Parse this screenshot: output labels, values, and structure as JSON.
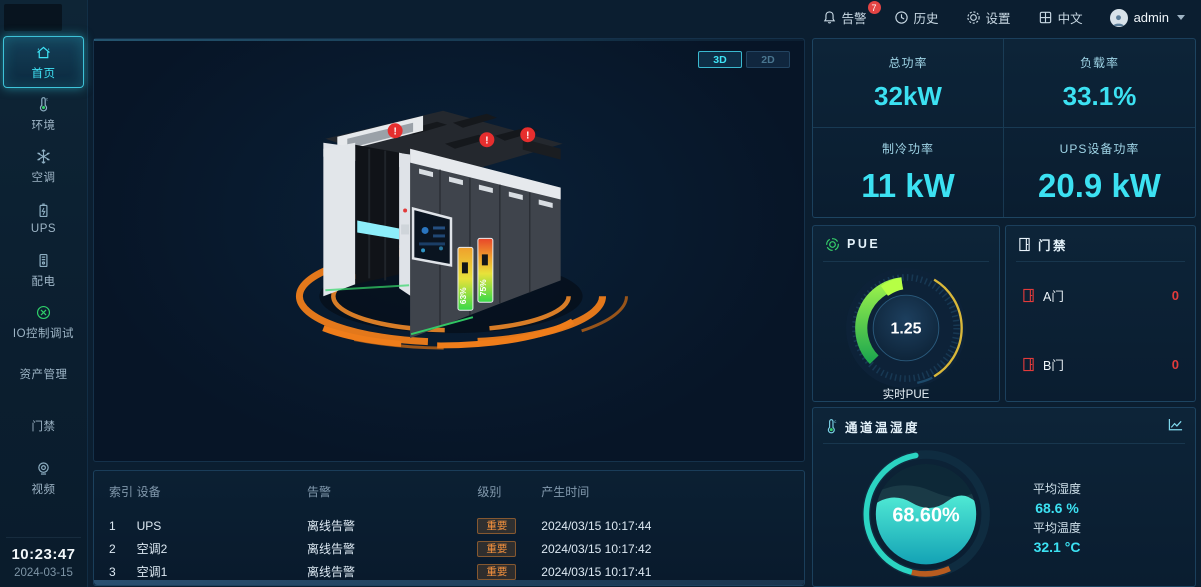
{
  "topbar": {
    "alarm": {
      "label": "告警",
      "badge": "7"
    },
    "history": {
      "label": "历史"
    },
    "settings": {
      "label": "设置"
    },
    "language": {
      "label": "中文"
    },
    "user": {
      "name": "admin"
    }
  },
  "sidebar": {
    "items": [
      {
        "key": "home",
        "label": "首页",
        "icon": "home",
        "active": true
      },
      {
        "key": "env",
        "label": "环境",
        "icon": "thermometer"
      },
      {
        "key": "ac",
        "label": "空调",
        "icon": "snowflake"
      },
      {
        "key": "ups",
        "label": "UPS",
        "icon": "battery"
      },
      {
        "key": "power",
        "label": "配电",
        "icon": "cabinet"
      },
      {
        "key": "io",
        "label": "IO控制调试",
        "icon": "io"
      },
      {
        "key": "asset",
        "label": "资产管理",
        "icon": null
      },
      {
        "key": "door",
        "label": "门禁",
        "icon": null
      },
      {
        "key": "video",
        "label": "视频",
        "icon": "camera"
      }
    ],
    "clock": {
      "time": "10:23:47",
      "date": "2024-03-15"
    }
  },
  "scene3d": {
    "toggle_3d": "3D",
    "toggle_2d": "2D",
    "alert_symbol": "!",
    "rack_bars": [
      {
        "value": "63%"
      },
      {
        "value": "75%"
      }
    ]
  },
  "stats": {
    "cells": [
      {
        "label": "总功率",
        "value": "32kW"
      },
      {
        "label": "负载率",
        "value": "33.1%"
      },
      {
        "label": "制冷功率",
        "value": "11 kW"
      },
      {
        "label": "UPS设备功率",
        "value": "20.9 kW"
      }
    ]
  },
  "pue": {
    "title": "PUE",
    "value": "1.25",
    "caption": "实时PUE"
  },
  "access": {
    "title": "门禁",
    "doors": [
      {
        "name": "A门",
        "value": "0"
      },
      {
        "name": "B门",
        "value": "0"
      }
    ]
  },
  "humidity_panel": {
    "title": "通道温湿度",
    "gauge_value": "68.60%",
    "metrics": [
      {
        "label": "平均湿度",
        "value": "68.6 %"
      },
      {
        "label": "平均温度",
        "value": "32.1 °C"
      }
    ]
  },
  "alarm_table": {
    "headers": [
      "索引",
      "设备",
      "告警",
      "级别",
      "产生时间"
    ],
    "rows": [
      {
        "index": "1",
        "device": "UPS",
        "alarm": "离线告警",
        "level": "重要",
        "time": "2024/03/15 10:17:44"
      },
      {
        "index": "2",
        "device": "空调2",
        "alarm": "离线告警",
        "level": "重要",
        "time": "2024/03/15 10:17:42"
      },
      {
        "index": "3",
        "device": "空调1",
        "alarm": "离线告警",
        "level": "重要",
        "time": "2024/03/15 10:17:41"
      }
    ]
  },
  "colors": {
    "accent_cyan": "#3ce1f2",
    "alert_red": "#e23b3b",
    "badge_orange": "#f5923e",
    "ring_orange": "#ef7d1a",
    "gauge_green": "#2ecc4f",
    "gauge_yellow": "#d9b83a",
    "liquid_teal": "#2bd4c2"
  }
}
